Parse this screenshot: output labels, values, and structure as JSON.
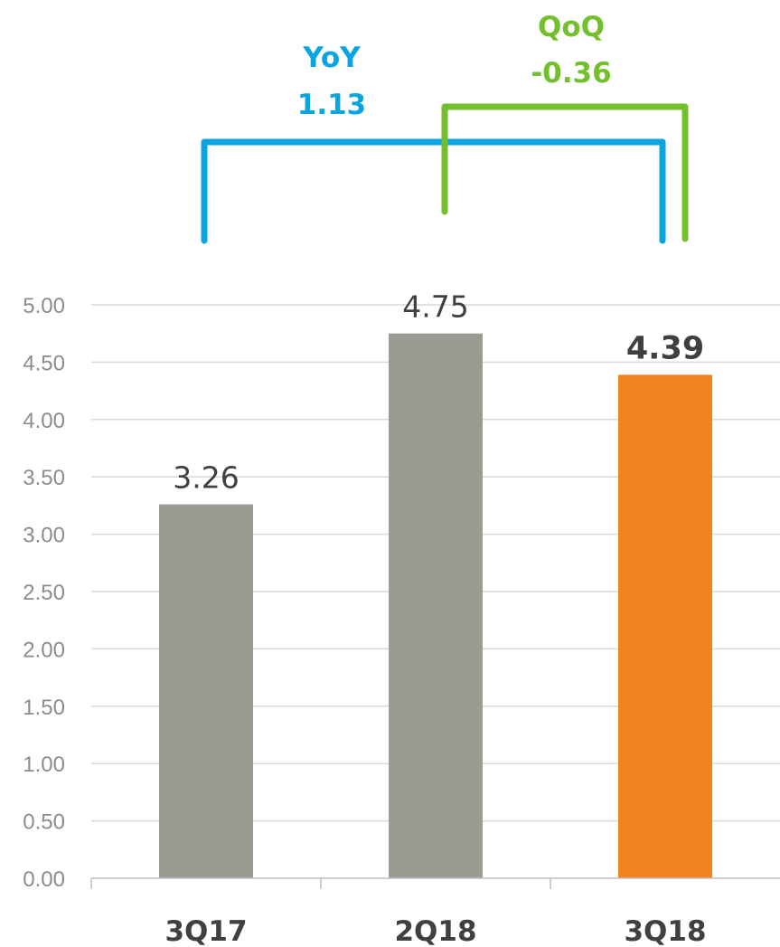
{
  "chart_data": {
    "type": "bar",
    "categories": [
      "3Q17",
      "2Q18",
      "3Q18"
    ],
    "values": [
      3.26,
      4.75,
      4.39
    ],
    "data_labels": [
      "3.26",
      "4.75",
      "4.39"
    ],
    "bar_colors": [
      "#9b9b94",
      "#9b9b94",
      "#f28420"
    ],
    "highlight_index": 2,
    "ylim": [
      0,
      5
    ],
    "yticks": [
      "0.00",
      "0.50",
      "1.00",
      "1.50",
      "2.00",
      "2.50",
      "3.00",
      "3.50",
      "4.00",
      "4.50",
      "5.00"
    ],
    "grid": true,
    "title": "",
    "xlabel": "",
    "ylabel": "",
    "annotations": [
      {
        "name": "yoy",
        "label": "YoY",
        "value": "1.13",
        "from": "3Q17",
        "to": "3Q18",
        "color": "#0aa5e0"
      },
      {
        "name": "qoq",
        "label": "QoQ",
        "value": "-0.36",
        "from": "2Q18",
        "to": "3Q18",
        "color": "#73c02c"
      }
    ]
  }
}
